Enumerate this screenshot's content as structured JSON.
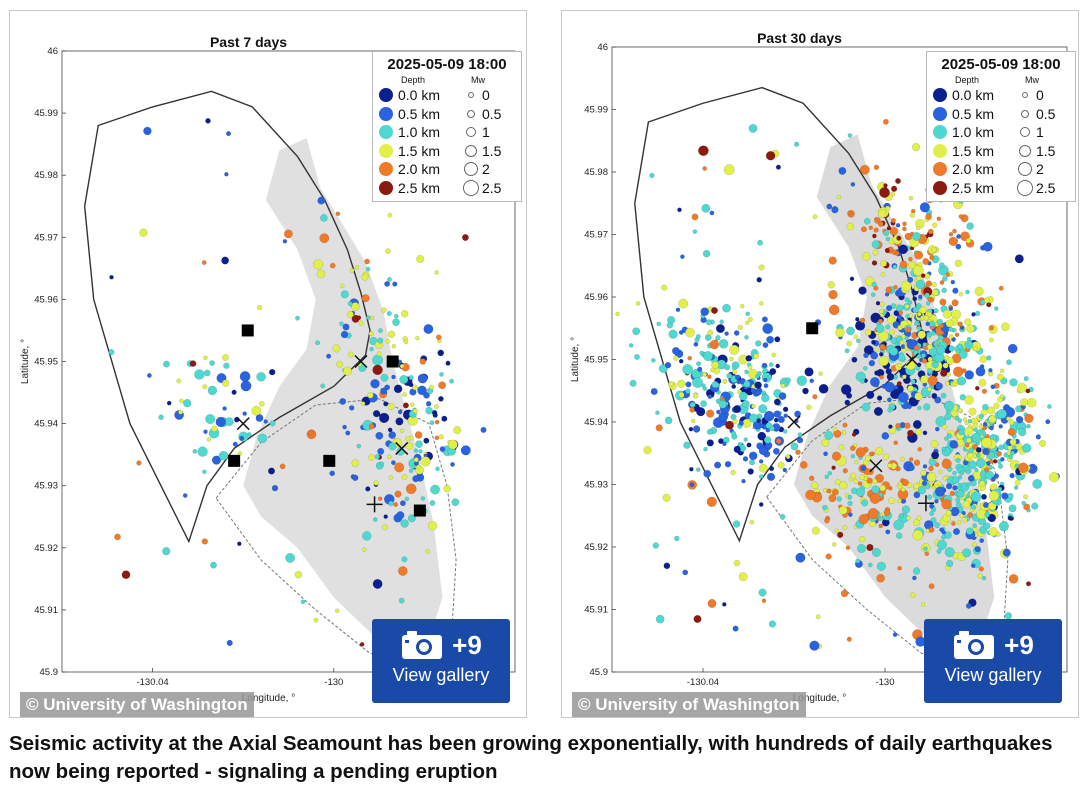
{
  "chart_data": [
    {
      "type": "scatter",
      "title": "Past 7 days",
      "xlabel": "Longitude, °",
      "ylabel": "Latitude, °",
      "x_ticks": [
        "-130.04",
        "-130"
      ],
      "y_ticks": [
        "46",
        "45.99",
        "45.98",
        "45.97",
        "45.96",
        "45.95",
        "45.94",
        "45.93",
        "45.92",
        "45.91",
        "45.9"
      ],
      "xlim": [
        -130.06,
        -129.96
      ],
      "ylim": [
        45.9,
        46.0
      ],
      "legend_title": "2025-05-09 18:00",
      "legend_depth_header": "Depth",
      "legend_mag_header": "Mw",
      "legend_depths": [
        "0.0 km",
        "0.5 km",
        "1.0 km",
        "1.5 km",
        "2.0 km",
        "2.5 km"
      ],
      "legend_mags": [
        "0",
        "0.5",
        "1",
        "1.5",
        "2",
        "2.5"
      ],
      "legend_position": "top-right",
      "density": "moderate",
      "clusters": [
        {
          "lon": -129.985,
          "lat": 45.943,
          "depth_km": 0.3,
          "count": 60
        },
        {
          "lon": -129.982,
          "lat": 45.938,
          "depth_km": 1.2,
          "count": 70
        },
        {
          "lon": -129.992,
          "lat": 45.955,
          "depth_km": 1.3,
          "count": 55
        },
        {
          "lon": -130.02,
          "lat": 45.94,
          "depth_km": 0.8,
          "count": 35
        },
        {
          "lon": -129.985,
          "lat": 45.927,
          "depth_km": 1.0,
          "count": 30
        },
        {
          "lon": -130.0,
          "lat": 45.965,
          "depth_km": 1.5,
          "count": 15
        },
        {
          "lon": -130.03,
          "lat": 45.945,
          "depth_km": 1.4,
          "count": 20
        }
      ],
      "markers": [
        {
          "symbol": "square",
          "lon": -130.019,
          "lat": 45.955
        },
        {
          "symbol": "square",
          "lon": -129.987,
          "lat": 45.95
        },
        {
          "symbol": "square",
          "lon": -130.022,
          "lat": 45.934
        },
        {
          "symbol": "square",
          "lon": -130.001,
          "lat": 45.934
        },
        {
          "symbol": "square",
          "lon": -129.981,
          "lat": 45.926
        },
        {
          "symbol": "x",
          "lon": -129.994,
          "lat": 45.95
        },
        {
          "symbol": "x",
          "lon": -130.02,
          "lat": 45.94
        },
        {
          "symbol": "x",
          "lon": -129.985,
          "lat": 45.936
        },
        {
          "symbol": "plus",
          "lon": -129.991,
          "lat": 45.927
        }
      ]
    },
    {
      "type": "scatter",
      "title": "Past 30 days",
      "xlabel": "Longitude, °",
      "ylabel": "Latitude, °",
      "x_ticks": [
        "-130.04",
        "-130"
      ],
      "y_ticks": [
        "46",
        "45.99",
        "45.98",
        "45.97",
        "45.96",
        "45.95",
        "45.94",
        "45.93",
        "45.92",
        "45.91",
        "45.9"
      ],
      "xlim": [
        -130.06,
        -129.96
      ],
      "ylim": [
        45.9,
        46.0
      ],
      "legend_title": "2025-05-09 18:00",
      "legend_depth_header": "Depth",
      "legend_mag_header": "Mw",
      "legend_depths": [
        "0.0 km",
        "0.5 km",
        "1.0 km",
        "1.5 km",
        "2.0 km",
        "2.5 km"
      ],
      "legend_mags": [
        "0",
        "0.5",
        "1",
        "1.5",
        "2",
        "2.5"
      ],
      "legend_position": "top-right",
      "density": "very high",
      "clusters": [
        {
          "lon": -129.995,
          "lat": 45.95,
          "depth_km": 0.3,
          "count": 160
        },
        {
          "lon": -130.03,
          "lat": 45.942,
          "depth_km": 0.6,
          "count": 200
        },
        {
          "lon": -129.99,
          "lat": 45.955,
          "depth_km": 1.3,
          "count": 260
        },
        {
          "lon": -129.978,
          "lat": 45.937,
          "depth_km": 1.2,
          "count": 260
        },
        {
          "lon": -129.985,
          "lat": 45.927,
          "depth_km": 1.2,
          "count": 180
        },
        {
          "lon": -130.005,
          "lat": 45.93,
          "depth_km": 1.6,
          "count": 130
        },
        {
          "lon": -129.995,
          "lat": 45.97,
          "depth_km": 1.9,
          "count": 110
        },
        {
          "lon": -130.04,
          "lat": 45.95,
          "depth_km": 1.1,
          "count": 90
        }
      ],
      "markers": [
        {
          "symbol": "square",
          "lon": -130.016,
          "lat": 45.955
        },
        {
          "symbol": "x",
          "lon": -129.994,
          "lat": 45.95
        },
        {
          "symbol": "x",
          "lon": -130.02,
          "lat": 45.94
        },
        {
          "symbol": "x",
          "lon": -130.002,
          "lat": 45.933
        },
        {
          "symbol": "plus",
          "lon": -129.991,
          "lat": 45.927
        }
      ]
    }
  ],
  "depth_colors": [
    "#0b1f8f",
    "#2a63e0",
    "#4fd8d0",
    "#e1ef4a",
    "#ef7a2a",
    "#8c1a10"
  ],
  "copyright": "© University of Washington",
  "gallery_count": "+9",
  "gallery_label": "View gallery",
  "caption": "Seismic activity at the Axial Seamount has been growing exponentially, with hundreds of daily earthquakes now being reported - signaling a pending eruption"
}
